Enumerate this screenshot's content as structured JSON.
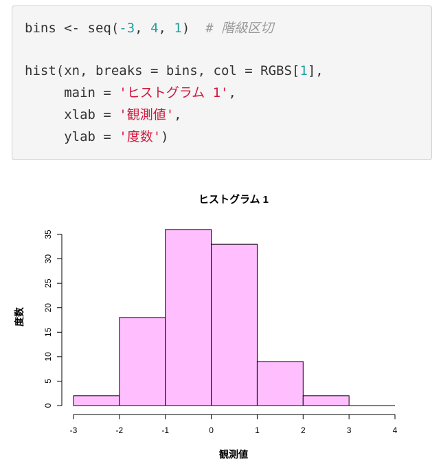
{
  "code": {
    "line1": {
      "prefix": "bins <- seq(",
      "neg": "-3",
      "sep1": ", ",
      "n2": "4",
      "sep2": ", ",
      "n3": "1",
      "close": ")  ",
      "comment": "# 階級区切"
    },
    "line2": {
      "prefix": "hist(xn, breaks = bins, col = RGBS[",
      "idx": "1",
      "suffix": "],"
    },
    "line3": {
      "indent": "     main = ",
      "value": "'ヒストグラム 1'",
      "suffix": ","
    },
    "line4": {
      "indent": "     xlab = ",
      "value": "'観測値'",
      "suffix": ","
    },
    "line5": {
      "indent": "     ylab = ",
      "value": "'度数'",
      "suffix": ")"
    }
  },
  "chart_data": {
    "type": "bar",
    "title": "ヒストグラム 1",
    "xlabel": "観測値",
    "ylabel": "度数",
    "bins": [
      {
        "from": -3,
        "to": -2,
        "count": 2
      },
      {
        "from": -2,
        "to": -1,
        "count": 18
      },
      {
        "from": -1,
        "to": 0,
        "count": 36
      },
      {
        "from": 0,
        "to": 1,
        "count": 33
      },
      {
        "from": 1,
        "to": 2,
        "count": 9
      },
      {
        "from": 2,
        "to": 3,
        "count": 2
      },
      {
        "from": 3,
        "to": 4,
        "count": 0
      }
    ],
    "x_ticks": [
      "-3",
      "-2",
      "-1",
      "0",
      "1",
      "2",
      "3",
      "4"
    ],
    "y_ticks": [
      "0",
      "5",
      "10",
      "15",
      "20",
      "25",
      "30",
      "35"
    ],
    "xlim": [
      -3,
      4
    ],
    "ylim": [
      0,
      35
    ],
    "bar_color": "#ffbfff",
    "grid": false
  }
}
